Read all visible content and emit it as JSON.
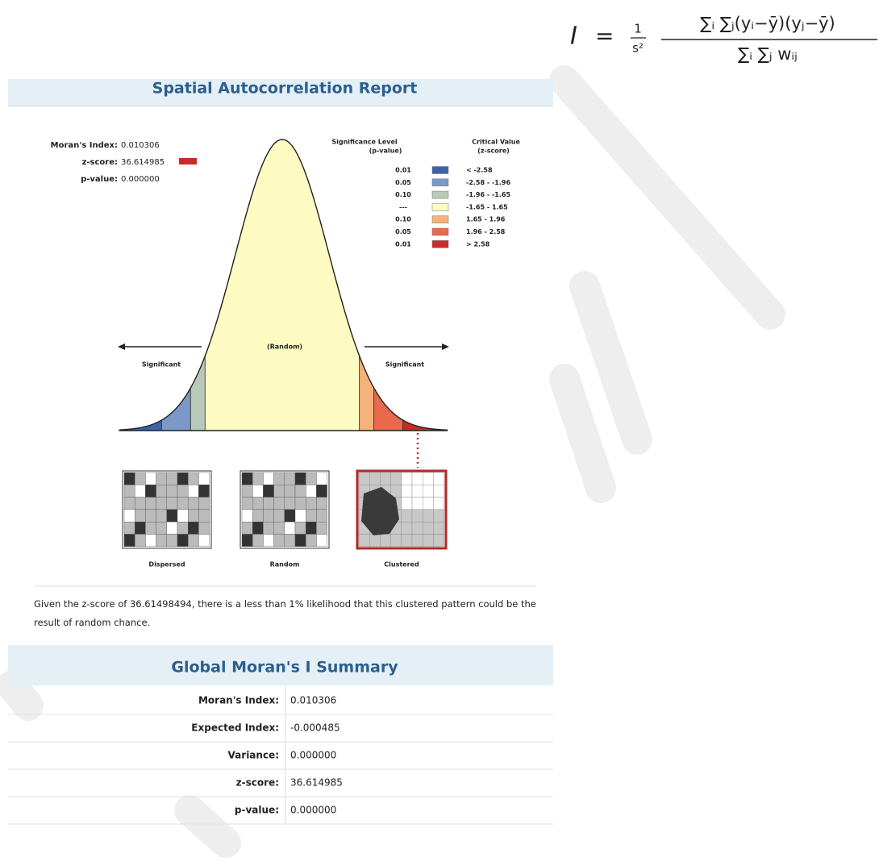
{
  "formula": {
    "variable": "I",
    "equals": "=",
    "coef_numerator": "1",
    "coef_denominator": "s²",
    "numerator": "∑ᵢ ∑ⱼ(yᵢ−ȳ)(yⱼ−ȳ)",
    "denominator": "∑ᵢ ∑ⱼ wᵢⱼ"
  },
  "report": {
    "title": "Spatial Autocorrelation Report",
    "stats": [
      {
        "label": "Moran's Index:",
        "value": "0.010306"
      },
      {
        "label": "z-score:",
        "value": "36.614985"
      },
      {
        "label": "p-value:",
        "value": "0.000000"
      }
    ],
    "legend": {
      "header_p": "Significance Level",
      "header_p_sub": "(p-value)",
      "header_z": "Critical Value",
      "header_z_sub": "(z-score)",
      "rows": [
        {
          "p": "0.01",
          "z": "< -2.58",
          "color": "#3a63a9"
        },
        {
          "p": "0.05",
          "z": "-2.58 - -1.96",
          "color": "#7c98c6"
        },
        {
          "p": "0.10",
          "z": "-1.96 - -1.65",
          "color": "#b9c9b9"
        },
        {
          "p": "---",
          "z": "-1.65 - 1.65",
          "color": "#fdfbc2"
        },
        {
          "p": "0.10",
          "z": "1.65 - 1.96",
          "color": "#f7b27c"
        },
        {
          "p": "0.05",
          "z": "1.96 - 2.58",
          "color": "#e8694b"
        },
        {
          "p": "0.01",
          "z": "> 2.58",
          "color": "#c92a2a"
        }
      ]
    },
    "curve_labels": {
      "left": "Significant",
      "center": "(Random)",
      "right": "Significant"
    },
    "patterns": [
      "Dispersed",
      "Random",
      "Clustered"
    ],
    "description": "Given the z-score of 36.61498494, there is a less than 1% likelihood that this clustered pattern could be the result of random chance."
  },
  "summary": {
    "title": "Global Moran's I Summary",
    "rows": [
      {
        "label": "Moran's Index:",
        "value": "0.010306"
      },
      {
        "label": "Expected Index:",
        "value": "-0.000485"
      },
      {
        "label": "Variance:",
        "value": "0.000000"
      },
      {
        "label": "z-score:",
        "value": "36.614985"
      },
      {
        "label": "p-value:",
        "value": "0.000000"
      }
    ]
  }
}
